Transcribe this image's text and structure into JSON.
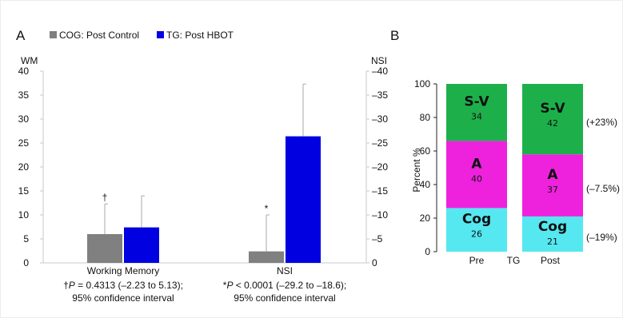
{
  "chart_data": [
    {
      "panel": "A",
      "type": "bar",
      "legend": [
        {
          "name": "COG: Post Control",
          "color": "#808080"
        },
        {
          "name": "TG: Post HBOT",
          "color": "#0000e0"
        }
      ],
      "left_axis_label": "WM",
      "right_axis_label": "NSI",
      "left_ticks": [
        "0",
        "5",
        "10",
        "15",
        "20",
        "25",
        "30",
        "35",
        "40"
      ],
      "right_ticks": [
        "0",
        "–5",
        "–10",
        "–15",
        "–20",
        "–25",
        "–30",
        "–35",
        "–40"
      ],
      "ylim": [
        0,
        40
      ],
      "groups": [
        {
          "label": "Working Memory",
          "axis": "left",
          "marker": "†",
          "bars": [
            {
              "series": "COG: Post Control",
              "value": 6.0,
              "error_top": 12.3
            },
            {
              "series": "TG: Post HBOT",
              "value": 7.4,
              "error_top": 14.0
            }
          ],
          "footnote_marker": "†",
          "footnote_italic": "P",
          "footnote_rest": " = 0.4313 (–2.23 to 5.13);",
          "footnote_line2": "95% confidence interval"
        },
        {
          "label": "NSI",
          "axis": "right",
          "marker": "*",
          "bars": [
            {
              "series": "COG: Post Control",
              "value": 2.4,
              "error_top": 10.0
            },
            {
              "series": "TG: Post HBOT",
              "value": 26.4,
              "error_top": 37.3
            }
          ],
          "footnote_marker": "*",
          "footnote_italic": "P",
          "footnote_rest": " < 0.0001 (–29.2 to –18.6);",
          "footnote_line2": "95% confidence interval"
        }
      ]
    },
    {
      "panel": "B",
      "type": "bar",
      "stacked": true,
      "ylabel": "Percent %",
      "ylim": [
        0,
        100
      ],
      "yticks": [
        "0",
        "20",
        "40",
        "60",
        "80",
        "100"
      ],
      "categories": [
        "Pre",
        "Post"
      ],
      "middle_label": "TG",
      "series": [
        {
          "name": "Cog",
          "color": "#55e8f0",
          "values": [
            26,
            21
          ],
          "labels": [
            "26",
            "21"
          ]
        },
        {
          "name": "A",
          "color": "#ee22dd",
          "values": [
            40,
            37
          ],
          "labels": [
            "40",
            "37"
          ]
        },
        {
          "name": "S-V",
          "color": "#1db04a",
          "values": [
            34,
            42
          ],
          "labels": [
            "34",
            "42"
          ]
        }
      ],
      "changes": [
        {
          "series": "S-V",
          "text": "(+23%)"
        },
        {
          "series": "A",
          "text": "(–7.5%)"
        },
        {
          "series": "Cog",
          "text": "(–19%)"
        }
      ]
    }
  ]
}
